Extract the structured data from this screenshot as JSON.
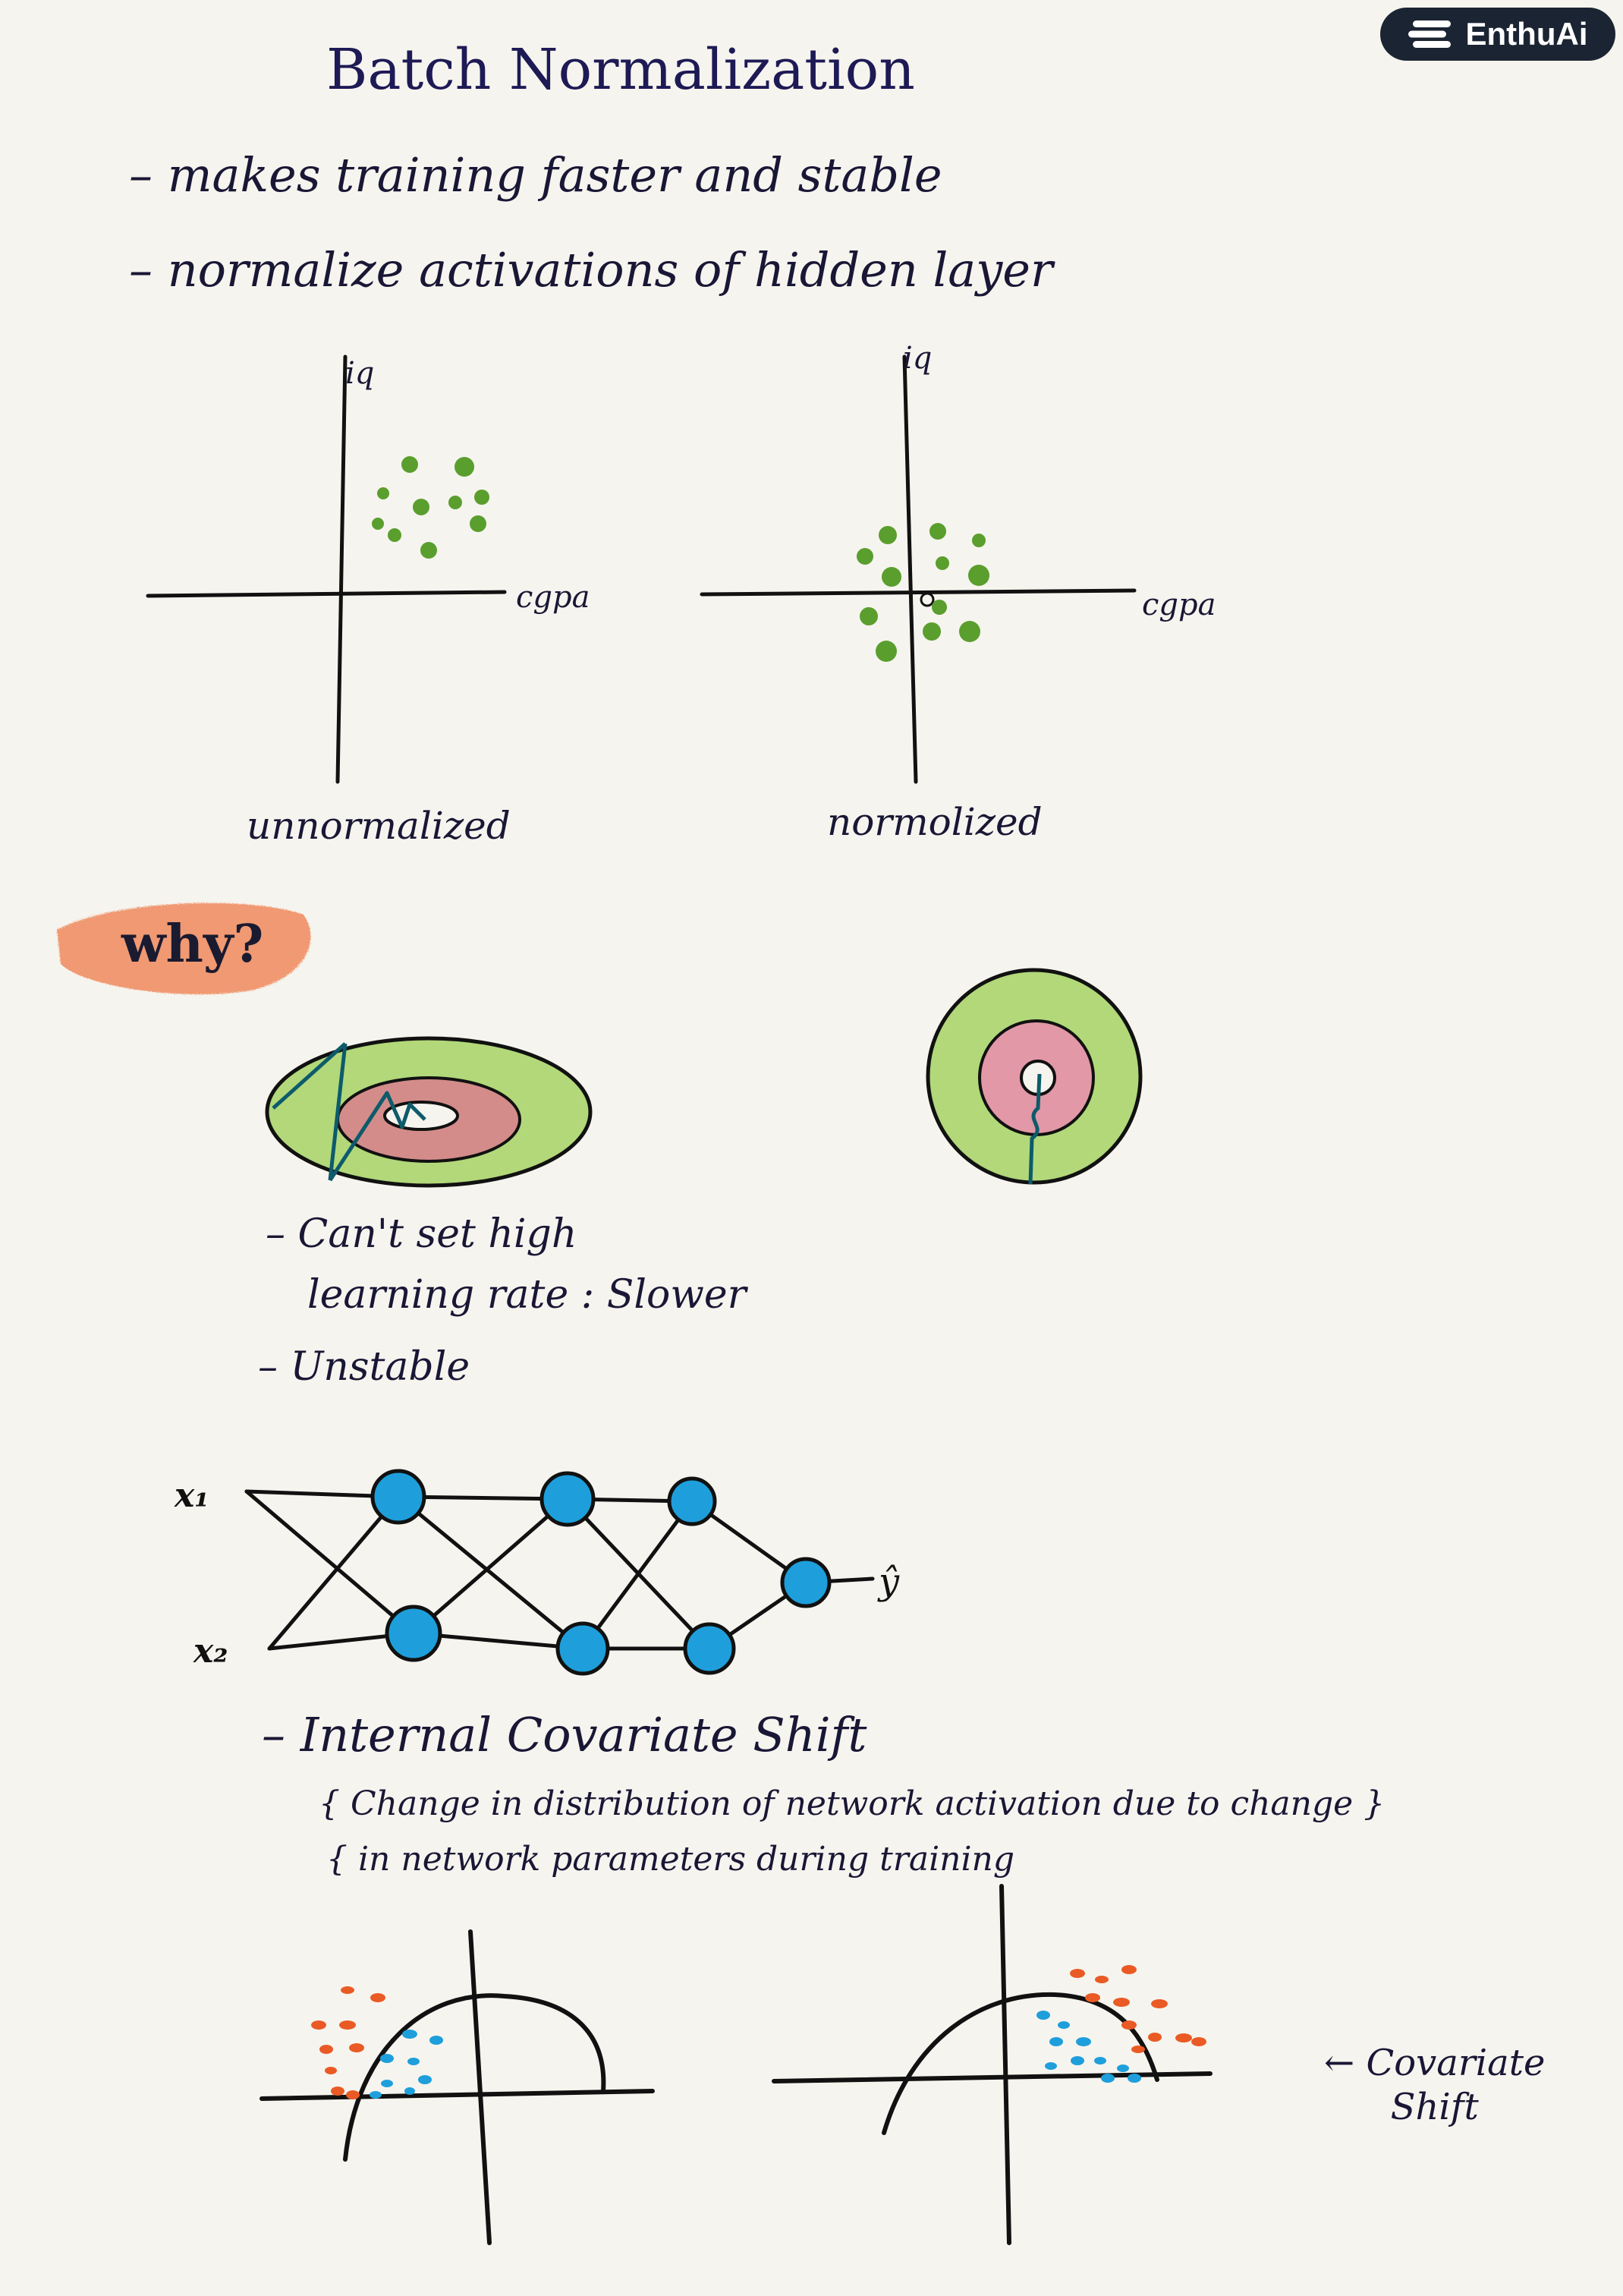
{
  "logo": {
    "text": "EnthuAi",
    "icon": "stack-icon"
  },
  "title": "Batch Normalization",
  "bullets": [
    "– makes training faster and stable",
    "– normalize activations of hidden layer"
  ],
  "scatter": {
    "y_label": "iq",
    "x_label": "cgpa",
    "left_caption": "unnormalized",
    "right_caption": "normolized",
    "dot_color": "#5a9e2e"
  },
  "why": {
    "label": "why?",
    "highlight_color": "#f08a5d"
  },
  "notes": [
    "– Can't set high",
    "learning rate : Slower",
    "– Unstable"
  ],
  "network": {
    "inputs": [
      "x₁",
      "x₂"
    ],
    "output": "ŷ",
    "node_color": "#1e9fdb"
  },
  "ics": {
    "heading": "– Internal Covariate Shift",
    "definition_line1": "{ Change in distribution of network activation due to change }",
    "definition_line2": "{ in network parameters during training"
  },
  "covariate": {
    "label_line1": "← Covariate",
    "label_line2": "Shift",
    "red": "#ea5a25",
    "blue": "#1e9fdb"
  }
}
